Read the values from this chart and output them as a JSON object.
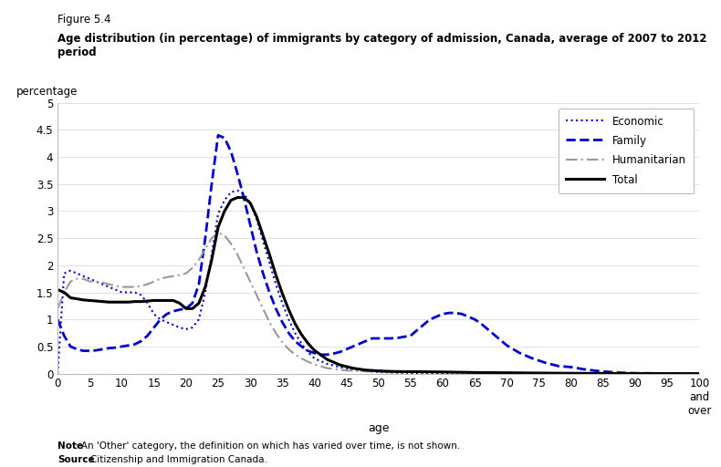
{
  "title_line1": "Figure 5.4",
  "title_line2": "Age distribution (in percentage) of immigrants by category of admission, Canada, average of 2007 to 2012 period",
  "ylabel": "percentage",
  "xlabel": "age",
  "xlim": [
    0,
    100
  ],
  "ylim": [
    0,
    5.0
  ],
  "yticks": [
    0.0,
    0.5,
    1.0,
    1.5,
    2.0,
    2.5,
    3.0,
    3.5,
    4.0,
    4.5,
    5.0
  ],
  "xticks": [
    0,
    5,
    10,
    15,
    20,
    25,
    30,
    35,
    40,
    45,
    50,
    55,
    60,
    65,
    70,
    75,
    80,
    85,
    90,
    95,
    100
  ],
  "xtick_labels": [
    "0",
    "5",
    "10",
    "15",
    "20",
    "25",
    "30",
    "35",
    "40",
    "45",
    "50",
    "55",
    "60",
    "65",
    "70",
    "75",
    "80",
    "85",
    "90",
    "95",
    "100\nand\nover"
  ],
  "note_bold": "Note",
  "note_rest": ": An 'Other' category, the definition on which has varied over time, is not shown.",
  "source_bold": "Source",
  "source_rest": ": Citizenship and Immigration Canada.",
  "series": {
    "Economic": {
      "color": "#0000CD",
      "linestyle": "dotted",
      "linewidth": 1.5,
      "x": [
        0,
        1,
        2,
        3,
        4,
        5,
        6,
        7,
        8,
        9,
        10,
        11,
        12,
        13,
        14,
        15,
        16,
        17,
        18,
        19,
        20,
        21,
        22,
        23,
        24,
        25,
        26,
        27,
        28,
        29,
        30,
        31,
        32,
        33,
        34,
        35,
        36,
        37,
        38,
        39,
        40,
        42,
        44,
        46,
        48,
        50,
        52,
        55,
        58,
        60,
        65,
        70,
        75,
        80,
        85,
        90,
        95,
        100
      ],
      "y": [
        0.0,
        1.85,
        1.9,
        1.85,
        1.8,
        1.75,
        1.7,
        1.65,
        1.6,
        1.55,
        1.5,
        1.5,
        1.5,
        1.45,
        1.3,
        1.1,
        1.0,
        0.95,
        0.9,
        0.85,
        0.82,
        0.85,
        1.0,
        1.5,
        2.2,
        2.95,
        3.2,
        3.35,
        3.38,
        3.32,
        3.15,
        2.85,
        2.45,
        2.05,
        1.65,
        1.3,
        1.0,
        0.75,
        0.55,
        0.4,
        0.28,
        0.18,
        0.12,
        0.08,
        0.05,
        0.03,
        0.02,
        0.012,
        0.006,
        0.004,
        0.002,
        0.001,
        0.0005,
        0.0002,
        0.0,
        0.0,
        0.0,
        0.0
      ]
    },
    "Family": {
      "color": "#0000CD",
      "linestyle": "dashed",
      "linewidth": 2.0,
      "x": [
        0,
        1,
        2,
        3,
        4,
        5,
        6,
        7,
        8,
        9,
        10,
        11,
        12,
        13,
        14,
        15,
        16,
        17,
        18,
        19,
        20,
        21,
        22,
        23,
        24,
        25,
        26,
        27,
        28,
        29,
        30,
        31,
        32,
        33,
        34,
        35,
        36,
        37,
        38,
        39,
        40,
        41,
        42,
        43,
        44,
        45,
        46,
        47,
        48,
        49,
        50,
        51,
        52,
        53,
        54,
        55,
        56,
        57,
        58,
        59,
        60,
        61,
        62,
        63,
        64,
        65,
        66,
        67,
        68,
        69,
        70,
        72,
        74,
        76,
        78,
        80,
        82,
        84,
        86,
        88,
        90,
        95,
        100
      ],
      "y": [
        1.0,
        0.7,
        0.5,
        0.45,
        0.42,
        0.42,
        0.43,
        0.45,
        0.47,
        0.48,
        0.5,
        0.52,
        0.54,
        0.6,
        0.7,
        0.85,
        1.0,
        1.1,
        1.15,
        1.18,
        1.2,
        1.3,
        1.65,
        2.5,
        3.5,
        4.4,
        4.35,
        4.1,
        3.7,
        3.25,
        2.75,
        2.25,
        1.85,
        1.5,
        1.2,
        0.95,
        0.75,
        0.6,
        0.5,
        0.42,
        0.38,
        0.35,
        0.35,
        0.37,
        0.4,
        0.45,
        0.5,
        0.55,
        0.6,
        0.65,
        0.65,
        0.65,
        0.65,
        0.66,
        0.68,
        0.7,
        0.8,
        0.9,
        1.0,
        1.05,
        1.1,
        1.12,
        1.12,
        1.1,
        1.05,
        1.0,
        0.92,
        0.82,
        0.72,
        0.62,
        0.52,
        0.38,
        0.28,
        0.2,
        0.14,
        0.12,
        0.08,
        0.05,
        0.03,
        0.015,
        0.008,
        0.003,
        0.001
      ]
    },
    "Humanitarian": {
      "color": "#999999",
      "linestyle": "dashed",
      "linewidth": 1.5,
      "dash_pattern": [
        6,
        2,
        1,
        2
      ],
      "x": [
        0,
        1,
        2,
        3,
        4,
        5,
        6,
        7,
        8,
        9,
        10,
        11,
        12,
        13,
        14,
        15,
        16,
        17,
        18,
        19,
        20,
        21,
        22,
        23,
        24,
        25,
        26,
        27,
        28,
        29,
        30,
        31,
        32,
        33,
        34,
        35,
        36,
        37,
        38,
        39,
        40,
        42,
        44,
        46,
        48,
        50,
        52,
        54,
        56,
        58,
        60,
        65,
        70,
        75,
        80,
        85,
        90,
        95,
        100
      ],
      "y": [
        1.2,
        1.5,
        1.7,
        1.75,
        1.75,
        1.7,
        1.7,
        1.68,
        1.65,
        1.62,
        1.6,
        1.6,
        1.6,
        1.62,
        1.65,
        1.7,
        1.75,
        1.78,
        1.8,
        1.82,
        1.85,
        1.95,
        2.1,
        2.3,
        2.5,
        2.6,
        2.55,
        2.4,
        2.2,
        1.95,
        1.7,
        1.45,
        1.2,
        0.95,
        0.75,
        0.58,
        0.45,
        0.35,
        0.28,
        0.22,
        0.17,
        0.1,
        0.07,
        0.05,
        0.04,
        0.035,
        0.03,
        0.03,
        0.03,
        0.03,
        0.03,
        0.02,
        0.015,
        0.01,
        0.007,
        0.004,
        0.002,
        0.001,
        0.0
      ]
    },
    "Total": {
      "color": "#000000",
      "linestyle": "solid",
      "linewidth": 2.2,
      "x": [
        0,
        1,
        2,
        3,
        4,
        5,
        6,
        7,
        8,
        9,
        10,
        11,
        12,
        13,
        14,
        15,
        16,
        17,
        18,
        19,
        20,
        21,
        22,
        23,
        24,
        25,
        26,
        27,
        28,
        29,
        30,
        31,
        32,
        33,
        34,
        35,
        36,
        37,
        38,
        39,
        40,
        42,
        44,
        46,
        48,
        50,
        52,
        54,
        56,
        58,
        60,
        65,
        70,
        75,
        80,
        85,
        90,
        95,
        100
      ],
      "y": [
        1.55,
        1.5,
        1.4,
        1.38,
        1.36,
        1.35,
        1.34,
        1.33,
        1.32,
        1.32,
        1.32,
        1.32,
        1.33,
        1.33,
        1.34,
        1.35,
        1.35,
        1.35,
        1.35,
        1.3,
        1.2,
        1.2,
        1.3,
        1.6,
        2.1,
        2.7,
        3.0,
        3.2,
        3.25,
        3.25,
        3.15,
        2.9,
        2.55,
        2.2,
        1.82,
        1.48,
        1.18,
        0.92,
        0.72,
        0.56,
        0.43,
        0.26,
        0.16,
        0.1,
        0.065,
        0.05,
        0.04,
        0.036,
        0.035,
        0.033,
        0.03,
        0.02,
        0.015,
        0.01,
        0.006,
        0.003,
        0.001,
        0.0005,
        0.0
      ]
    }
  }
}
